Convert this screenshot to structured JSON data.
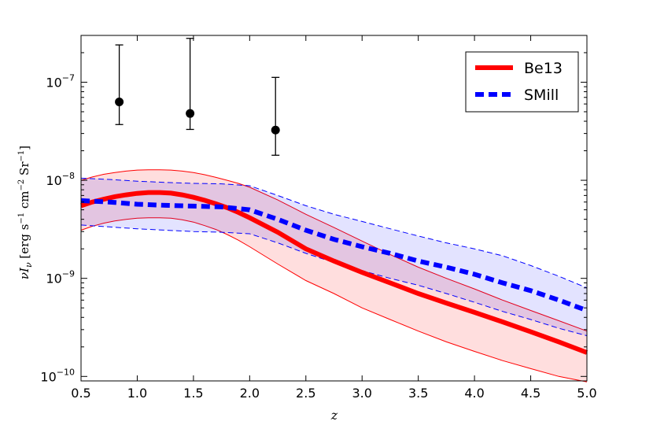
{
  "chart_data": {
    "type": "line",
    "title": "",
    "xlabel": "z",
    "ylabel": {
      "nu": "ν",
      "I": "I",
      "sub": "ν",
      "open": " [",
      "erg": "erg",
      "s": " s",
      "sexp": "−1",
      "cm": " cm",
      "cmexp": "−2",
      "sr": " Sr",
      "srexp": "−1",
      "close": "]"
    },
    "x_scale": "linear",
    "y_scale": "log",
    "xlim": [
      0.5,
      5.0
    ],
    "ylim": [
      9e-11,
      3e-07
    ],
    "x_ticks": [
      "0.5",
      "1.0",
      "1.5",
      "2.0",
      "2.5",
      "3.0",
      "3.5",
      "4.0",
      "4.5",
      "5.0"
    ],
    "y_ticks": [
      {
        "value": 1e-10,
        "base": "10",
        "exp": "−10"
      },
      {
        "value": 1e-09,
        "base": "10",
        "exp": "−9"
      },
      {
        "value": 1e-08,
        "base": "10",
        "exp": "−8"
      },
      {
        "value": 1e-07,
        "base": "10",
        "exp": "−7"
      }
    ],
    "grid": false,
    "legend_position": "top-right",
    "series": [
      {
        "name": "Be13",
        "style": "solid",
        "color": "#ff0000",
        "band_fill": "#ff0000",
        "x": [
          0.5,
          0.6,
          0.7,
          0.8,
          0.9,
          1.0,
          1.1,
          1.2,
          1.3,
          1.4,
          1.5,
          1.6,
          1.7,
          1.8,
          1.9,
          2.0,
          2.25,
          2.5,
          2.75,
          3.0,
          3.25,
          3.5,
          3.75,
          4.0,
          4.25,
          4.5,
          4.75,
          5.0
        ],
        "y": [
          5.5e-09,
          6e-09,
          6.4e-09,
          6.8e-09,
          7.1e-09,
          7.35e-09,
          7.5e-09,
          7.5e-09,
          7.4e-09,
          7.1e-09,
          6.7e-09,
          6.25e-09,
          5.75e-09,
          5.25e-09,
          4.7e-09,
          4.15e-09,
          2.95e-09,
          2e-09,
          1.5e-09,
          1.15e-09,
          9e-10,
          7e-10,
          5.6e-10,
          4.5e-10,
          3.6e-10,
          2.85e-10,
          2.25e-10,
          1.75e-10
        ],
        "upper": [
          1e-08,
          1.08e-08,
          1.15e-08,
          1.2e-08,
          1.24e-08,
          1.27e-08,
          1.28e-08,
          1.28e-08,
          1.27e-08,
          1.24e-08,
          1.2e-08,
          1.14e-08,
          1.07e-08,
          1e-08,
          9.3e-09,
          8.5e-09,
          6.3e-09,
          4.5e-09,
          3.3e-09,
          2.4e-09,
          1.75e-09,
          1.3e-09,
          1e-09,
          7.8e-10,
          6e-10,
          4.7e-10,
          3.7e-10,
          2.9e-10
        ],
        "lower": [
          3.1e-09,
          3.4e-09,
          3.65e-09,
          3.85e-09,
          4e-09,
          4.1e-09,
          4.15e-09,
          4.15e-09,
          4.1e-09,
          3.95e-09,
          3.75e-09,
          3.45e-09,
          3.15e-09,
          2.8e-09,
          2.45e-09,
          2.1e-09,
          1.4e-09,
          9.5e-10,
          7e-10,
          5e-10,
          3.8e-10,
          2.9e-10,
          2.25e-10,
          1.8e-10,
          1.45e-10,
          1.2e-10,
          1e-10,
          8.8e-11
        ]
      },
      {
        "name": "SMill",
        "style": "dashed",
        "color": "#0000ff",
        "band_fill": "#0000ff",
        "x": [
          0.5,
          0.75,
          1.0,
          1.25,
          1.5,
          1.75,
          2.0,
          2.25,
          2.5,
          2.75,
          3.0,
          3.25,
          3.5,
          3.75,
          4.0,
          4.25,
          4.5,
          4.75,
          5.0
        ],
        "y": [
          6.2e-09,
          6e-09,
          5.7e-09,
          5.55e-09,
          5.45e-09,
          5.35e-09,
          5e-09,
          4e-09,
          3.1e-09,
          2.5e-09,
          2.1e-09,
          1.8e-09,
          1.5e-09,
          1.3e-09,
          1.1e-09,
          9e-10,
          7.5e-10,
          6e-10,
          4.7e-10
        ],
        "upper": [
          1.05e-08,
          1.02e-08,
          9.8e-09,
          9.5e-09,
          9.3e-09,
          9.2e-09,
          8.8e-09,
          7e-09,
          5.5e-09,
          4.5e-09,
          3.8e-09,
          3.2e-09,
          2.7e-09,
          2.3e-09,
          2e-09,
          1.7e-09,
          1.35e-09,
          1.05e-09,
          8e-10
        ],
        "lower": [
          3.5e-09,
          3.35e-09,
          3.2e-09,
          3.1e-09,
          3e-09,
          2.95e-09,
          2.85e-09,
          2.3e-09,
          1.8e-09,
          1.45e-09,
          1.2e-09,
          1e-09,
          8.5e-10,
          7e-10,
          5.7e-10,
          4.6e-10,
          3.8e-10,
          3.1e-10,
          2.6e-10
        ]
      }
    ],
    "points": [
      {
        "x": 0.84,
        "y": 6.3e-08,
        "yerr_low": 3.7e-08,
        "yerr_high": 2.4e-07
      },
      {
        "x": 1.47,
        "y": 4.8e-08,
        "yerr_low": 3.3e-08,
        "yerr_high": 2.8e-07
      },
      {
        "x": 2.23,
        "y": 3.25e-08,
        "yerr_low": 1.8e-08,
        "yerr_high": 1.12e-07
      }
    ],
    "colors": {
      "point": "#000000",
      "axis": "#000000"
    }
  }
}
